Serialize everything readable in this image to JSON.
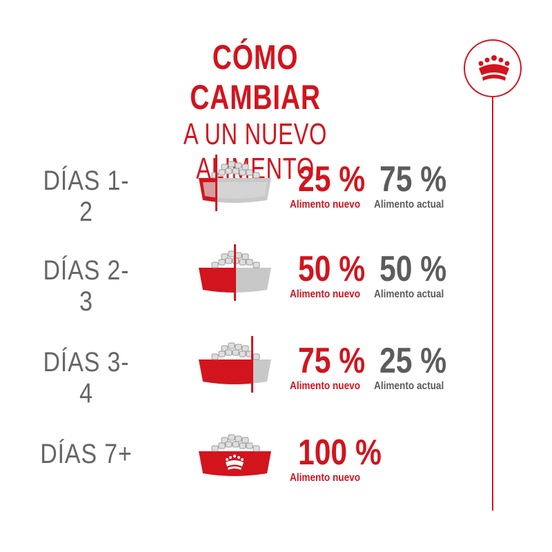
{
  "title": {
    "line1": "CÓMO CAMBIAR",
    "line2": "A UN NUEVO ALIMENTO"
  },
  "brand": {
    "logo_icon": "crown-icon",
    "accent_color": "#d2141d",
    "grey_color": "#5c5c5c"
  },
  "rows": [
    {
      "days": "DÍAS 1-2",
      "new_pct": "25 %",
      "new_label": "Alimento nuevo",
      "old_pct": "75 %",
      "old_label": "Alimento actual",
      "new_fraction": 0.25
    },
    {
      "days": "DÍAS 2-3",
      "new_pct": "50 %",
      "new_label": "Alimento nuevo",
      "old_pct": "50 %",
      "old_label": "Alimento actual",
      "new_fraction": 0.5
    },
    {
      "days": "DÍAS 3-4",
      "new_pct": "75 %",
      "new_label": "Alimento nuevo",
      "old_pct": "25 %",
      "old_label": "Alimento actual",
      "new_fraction": 0.75
    },
    {
      "days": "DÍAS 7+",
      "new_pct": "100 %",
      "new_label": "Alimento nuevo",
      "new_fraction": 1.0
    }
  ]
}
